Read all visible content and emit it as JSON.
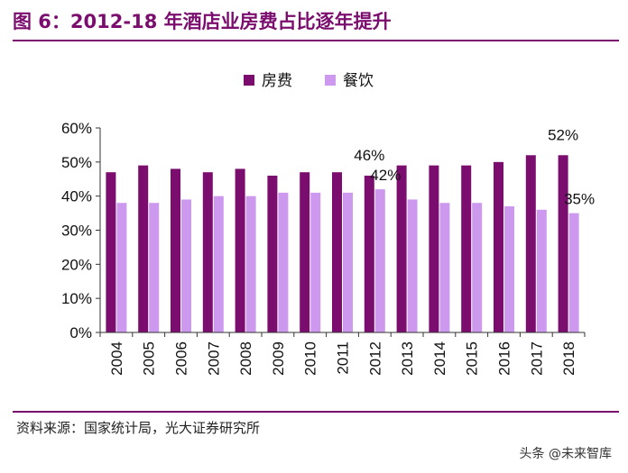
{
  "header": {
    "title": "图 6：2012-18 年酒店业房费占比逐年提升"
  },
  "footer": {
    "source": "资料来源：国家统计局，光大证券研究所",
    "watermark": "头条 @未来智库"
  },
  "chart_data": {
    "type": "bar",
    "categories": [
      "2004",
      "2005",
      "2006",
      "2007",
      "2008",
      "2009",
      "2010",
      "2011",
      "2012",
      "2013",
      "2014",
      "2015",
      "2016",
      "2017",
      "2018"
    ],
    "series": [
      {
        "name": "房费",
        "color": "#7b0d6e",
        "values": [
          47,
          49,
          48,
          47,
          48,
          46,
          47,
          47,
          46,
          49,
          49,
          49,
          50,
          52,
          52
        ]
      },
      {
        "name": "餐饮",
        "color": "#cc99ee",
        "values": [
          38,
          38,
          39,
          40,
          40,
          41,
          41,
          41,
          42,
          39,
          38,
          38,
          37,
          36,
          35
        ]
      }
    ],
    "ylim": [
      0,
      60
    ],
    "yticks": [
      "0%",
      "10%",
      "20%",
      "30%",
      "40%",
      "50%",
      "60%"
    ],
    "annotations": [
      {
        "category": "2012",
        "series": 0,
        "text": "46%"
      },
      {
        "category": "2012",
        "series": 1,
        "text": "42%"
      },
      {
        "category": "2018",
        "series": 0,
        "text": "52%"
      },
      {
        "category": "2018",
        "series": 1,
        "text": "35%"
      }
    ],
    "legend_position": "top-center",
    "grid": false
  }
}
